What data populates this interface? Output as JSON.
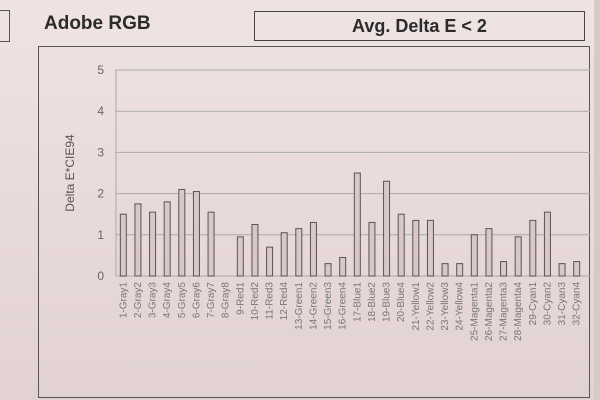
{
  "header": {
    "left_title": "Adobe RGB",
    "summary": "Avg. Delta E < 2"
  },
  "colors": {
    "bar_fill": "#dcc7c7",
    "bar_stroke": "#555555",
    "grid": "#aaaaaa",
    "frame": "#555555"
  },
  "chart_data": {
    "type": "bar",
    "title": "",
    "xlabel": "",
    "ylabel": "Delta E*CIE94",
    "ylim": [
      0,
      5
    ],
    "yticks": [
      0,
      1,
      2,
      3,
      4,
      5
    ],
    "grid": true,
    "categories": [
      "1-Gray1",
      "2-Gray2",
      "3-Gray3",
      "4-Gray4",
      "5-Gray5",
      "6-Gray6",
      "7-Gray7",
      "8-Gray8",
      "9-Red1",
      "10-Red2",
      "11-Red3",
      "12-Red4",
      "13-Green1",
      "14-Green2",
      "15-Green3",
      "16-Green4",
      "17-Blue1",
      "18-Blue2",
      "19-Blue3",
      "20-Blue4",
      "21-Yellow1",
      "22-Yellow2",
      "23-Yellow3",
      "24-Yellow4",
      "25-Magenta1",
      "26-Magenta2",
      "27-Magenta3",
      "28-Magenta4",
      "29-Cyan1",
      "30-Cyan2",
      "31-Cyan3",
      "32-Cyan4"
    ],
    "values": [
      1.5,
      1.75,
      1.55,
      1.8,
      2.1,
      2.05,
      1.55,
      0.0,
      0.95,
      1.25,
      0.7,
      1.05,
      1.15,
      1.3,
      0.3,
      0.45,
      2.5,
      1.3,
      2.3,
      1.5,
      1.35,
      1.35,
      0.3,
      0.3,
      1.0,
      1.15,
      0.35,
      0.95,
      1.35,
      1.55,
      0.3,
      0.35
    ]
  }
}
